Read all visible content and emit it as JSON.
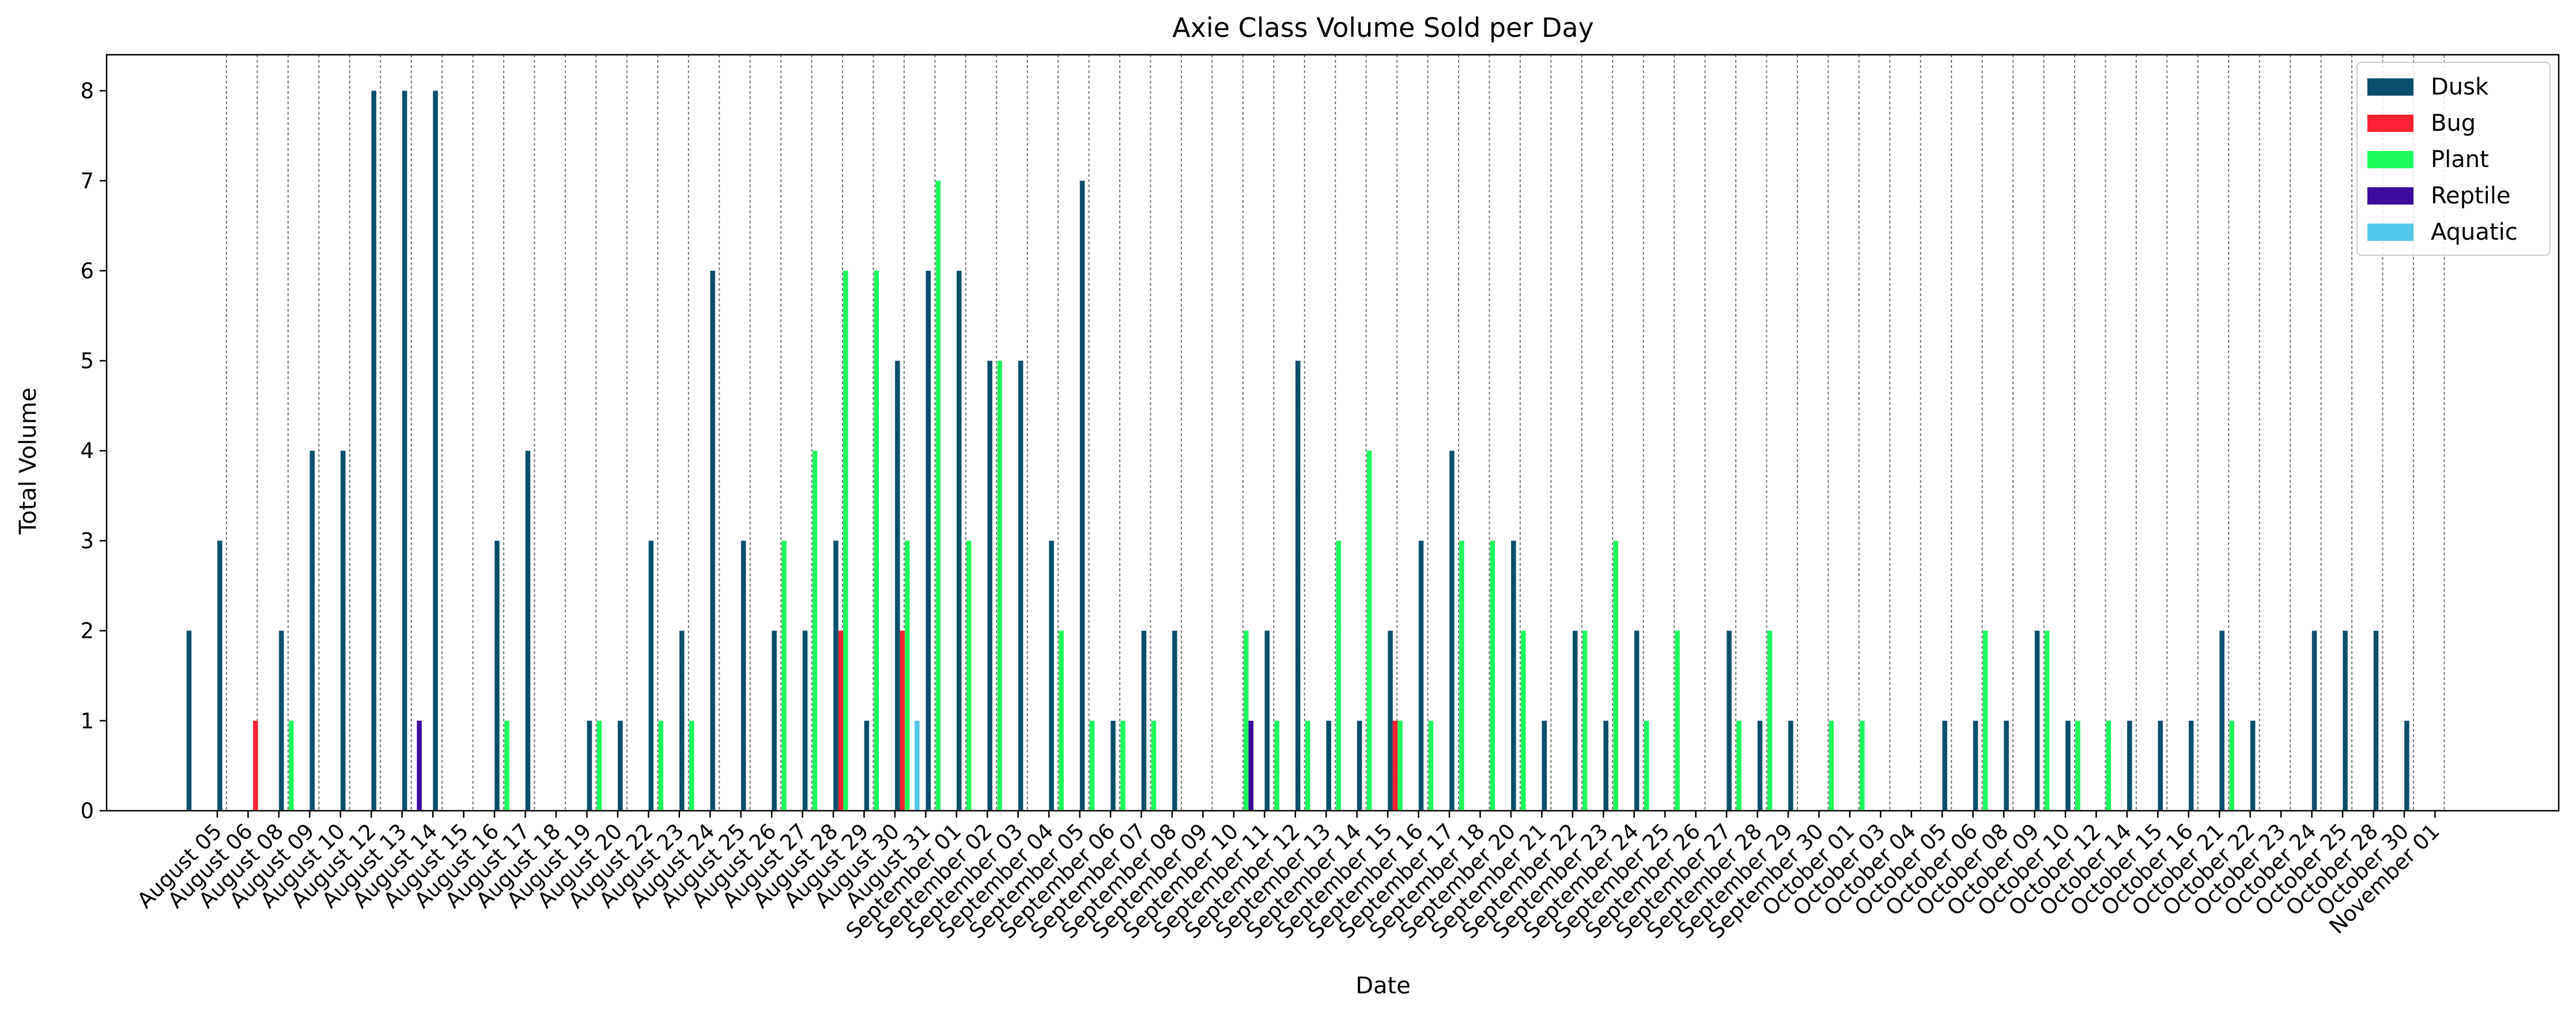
{
  "chart_data": {
    "type": "bar",
    "title": "Axie Class Volume Sold per Day",
    "xlabel": "Date",
    "ylabel": "Total Volume",
    "ylim": [
      0,
      8.4
    ],
    "yticks": [
      0,
      1,
      2,
      3,
      4,
      5,
      6,
      7,
      8
    ],
    "grid": "vertical dashed at each date",
    "legend_position": "top-right",
    "categories": [
      "August 05",
      "August 06",
      "August 08",
      "August 09",
      "August 10",
      "August 12",
      "August 13",
      "August 14",
      "August 15",
      "August 16",
      "August 17",
      "August 18",
      "August 19",
      "August 20",
      "August 22",
      "August 23",
      "August 24",
      "August 25",
      "August 26",
      "August 27",
      "August 28",
      "August 29",
      "August 30",
      "August 31",
      "September 01",
      "September 02",
      "September 03",
      "September 04",
      "September 05",
      "September 06",
      "September 07",
      "September 08",
      "September 09",
      "September 10",
      "September 11",
      "September 12",
      "September 13",
      "September 14",
      "September 15",
      "September 16",
      "September 17",
      "September 18",
      "September 20",
      "September 21",
      "September 22",
      "September 23",
      "September 24",
      "September 25",
      "September 26",
      "September 27",
      "September 28",
      "September 29",
      "September 30",
      "October 01",
      "October 03",
      "October 04",
      "October 05",
      "October 06",
      "October 08",
      "October 09",
      "October 10",
      "October 12",
      "October 14",
      "October 15",
      "October 16",
      "October 21",
      "October 22",
      "October 23",
      "October 24",
      "October 25",
      "October 28",
      "October 30",
      "November 01"
    ],
    "series": [
      {
        "name": "Dusk",
        "color": "#0b4f6c",
        "values": [
          2,
          3,
          0,
          2,
          4,
          4,
          8,
          8,
          8,
          0,
          3,
          4,
          0,
          1,
          1,
          3,
          2,
          6,
          3,
          2,
          2,
          3,
          1,
          5,
          6,
          6,
          5,
          5,
          3,
          7,
          1,
          2,
          2,
          0,
          0,
          2,
          5,
          1,
          1,
          2,
          3,
          4,
          0,
          3,
          1,
          2,
          1,
          2,
          0,
          0,
          2,
          1,
          1,
          0,
          0,
          0,
          0,
          1,
          1,
          1,
          2,
          1,
          0,
          1,
          1,
          1,
          2,
          1,
          0,
          2,
          2,
          2,
          1
        ]
      },
      {
        "name": "Bug",
        "color": "#ff2233",
        "values": [
          0,
          0,
          1,
          0,
          0,
          0,
          0,
          0,
          0,
          0,
          0,
          0,
          0,
          0,
          0,
          0,
          0,
          0,
          0,
          0,
          0,
          2,
          0,
          2,
          0,
          0,
          0,
          0,
          0,
          0,
          0,
          0,
          0,
          0,
          0,
          0,
          0,
          0,
          0,
          1,
          0,
          0,
          0,
          0,
          0,
          0,
          0,
          0,
          0,
          0,
          0,
          0,
          0,
          0,
          0,
          0,
          0,
          0,
          0,
          0,
          0,
          0,
          0,
          0,
          0,
          0,
          0,
          0,
          0,
          0,
          0,
          0,
          0
        ]
      },
      {
        "name": "Plant",
        "color": "#1efc5c",
        "values": [
          0,
          0,
          0,
          1,
          0,
          0,
          0,
          0,
          0,
          0,
          1,
          0,
          0,
          1,
          0,
          1,
          1,
          0,
          0,
          3,
          4,
          6,
          6,
          3,
          7,
          3,
          5,
          0,
          2,
          1,
          1,
          1,
          0,
          0,
          2,
          1,
          1,
          3,
          4,
          1,
          1,
          3,
          3,
          2,
          0,
          2,
          3,
          1,
          2,
          0,
          1,
          2,
          0,
          1,
          1,
          0,
          0,
          0,
          2,
          0,
          2,
          1,
          1,
          0,
          0,
          0,
          1,
          0,
          0,
          0,
          0,
          0,
          0
        ]
      },
      {
        "name": "Reptile",
        "color": "#3c0a9c",
        "values": [
          0,
          0,
          0,
          0,
          0,
          0,
          0,
          1,
          0,
          0,
          0,
          0,
          0,
          0,
          0,
          0,
          0,
          0,
          0,
          0,
          0,
          0,
          0,
          0,
          0,
          0,
          0,
          0,
          0,
          0,
          0,
          0,
          0,
          0,
          1,
          0,
          0,
          0,
          0,
          0,
          0,
          0,
          0,
          0,
          0,
          0,
          0,
          0,
          0,
          0,
          0,
          0,
          0,
          0,
          0,
          0,
          0,
          0,
          0,
          0,
          0,
          0,
          0,
          0,
          0,
          0,
          0,
          0,
          0,
          0,
          0,
          0,
          0
        ]
      },
      {
        "name": "Aquatic",
        "color": "#52c8ec",
        "values": [
          0,
          0,
          0,
          0,
          0,
          0,
          0,
          0,
          0,
          0,
          0,
          0,
          0,
          0,
          0,
          0,
          0,
          0,
          0,
          0,
          0,
          0,
          0,
          1,
          0,
          0,
          0,
          0,
          0,
          0,
          0,
          0,
          0,
          0,
          0,
          0,
          0,
          0,
          0,
          0,
          0,
          0,
          0,
          0,
          0,
          0,
          0,
          0,
          0,
          0,
          0,
          0,
          0,
          0,
          0,
          0,
          0,
          0,
          0,
          0,
          0,
          0,
          0,
          0,
          0,
          0,
          0,
          0,
          0,
          0,
          0,
          0,
          0
        ]
      }
    ]
  }
}
